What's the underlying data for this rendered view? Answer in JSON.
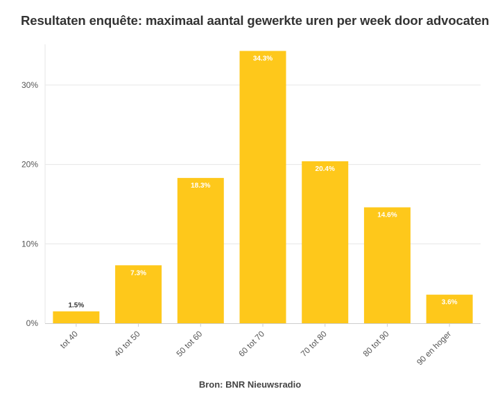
{
  "title": "Resultaten enquête: maximaal aantal gewerkte uren per week door advocaten",
  "source": "Bron: BNR Nieuwsradio",
  "colors": {
    "bar": "#fec81b",
    "grid": "#e6e6e6",
    "label_inside": "#ffffff",
    "label_outside": "#333333"
  },
  "chart_data": {
    "type": "bar",
    "title": "Resultaten enquête: maximaal aantal gewerkte uren per week door advocaten",
    "xlabel": "",
    "ylabel": "",
    "categories": [
      "tot 40",
      "40 tot 50",
      "50 tot 60",
      "60 tot 70",
      "70 tot 80",
      "80 tot 90",
      "90 en hoger"
    ],
    "values": [
      1.5,
      7.3,
      18.3,
      34.3,
      20.4,
      14.6,
      3.6
    ],
    "value_labels": [
      "1.5%",
      "7.3%",
      "18.3%",
      "34.3%",
      "20.4%",
      "14.6%",
      "3.6%"
    ],
    "ylim": [
      0,
      35
    ],
    "yticks": [
      0,
      10,
      20,
      30
    ],
    "ytick_labels": [
      "0%",
      "10%",
      "20%",
      "30%"
    ],
    "grid": true,
    "legend": "none"
  }
}
